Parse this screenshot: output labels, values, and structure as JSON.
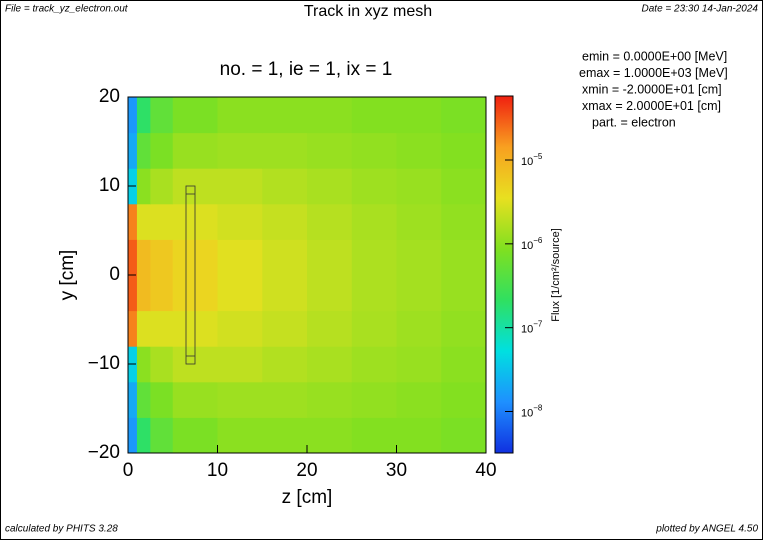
{
  "chart_data": {
    "type": "heatmap",
    "file_label": "File = track_yz_electron.out",
    "title": "Track in xyz mesh",
    "date_label": "Date = 23:30 14-Jan-2024",
    "subtitle": "no. =  1,  ie =  1,  ix =  1",
    "info": [
      "emin  =   0.0000E+00 [MeV]",
      "emax  =   1.0000E+03 [MeV]",
      "xmin  =  -2.0000E+01 [cm]",
      "xmax  =   2.0000E+01 [cm]",
      "part. = electron"
    ],
    "footer_left": "calculated by PHITS 3.28",
    "footer_right": "plotted by ANGEL 4.50",
    "xlabel": "z [cm]",
    "ylabel": "y [cm]",
    "xlim": [
      0,
      40
    ],
    "xticks": [
      0,
      10,
      20,
      30,
      40
    ],
    "ylim": [
      -20,
      20
    ],
    "yticks": [
      {
        "value": -20,
        "label": "−20"
      },
      {
        "value": -10,
        "label": "−10"
      },
      0,
      10,
      20
    ],
    "xbins": [
      0,
      1,
      2.5,
      5,
      10,
      15,
      20,
      25,
      30,
      35,
      40
    ],
    "ybins": [
      -20,
      -16,
      -12,
      -8,
      -4,
      0,
      4,
      8,
      12,
      16,
      20
    ],
    "values": [
      [
        1.5e-08,
        2e-07,
        5e-07,
        8e-07,
        1e-06,
        1e-06,
        1e-06,
        9e-07,
        9e-07,
        8e-07
      ],
      [
        2e-08,
        5e-07,
        8e-07,
        1.2e-06,
        1.3e-06,
        1.3e-06,
        1.2e-06,
        1.1e-06,
        1e-06,
        9e-07
      ],
      [
        4e-08,
        1e-06,
        1.5e-06,
        2e-06,
        2e-06,
        1.7e-06,
        1.5e-06,
        1.3e-06,
        1.2e-06,
        1e-06
      ],
      [
        2e-05,
        3e-06,
        3e-06,
        3e-06,
        2.6e-06,
        2.2e-06,
        1.8e-06,
        1.5e-06,
        1.3e-06,
        1.1e-06
      ],
      [
        3e-05,
        8e-06,
        6e-06,
        4.5e-06,
        3.2e-06,
        2.5e-06,
        2e-06,
        1.6e-06,
        1.4e-06,
        1.2e-06
      ],
      [
        3e-05,
        8e-06,
        6e-06,
        4.5e-06,
        3.2e-06,
        2.5e-06,
        2e-06,
        1.6e-06,
        1.4e-06,
        1.2e-06
      ],
      [
        2e-05,
        3e-06,
        3e-06,
        3e-06,
        2.6e-06,
        2.2e-06,
        1.8e-06,
        1.5e-06,
        1.3e-06,
        1.1e-06
      ],
      [
        4e-08,
        1e-06,
        1.5e-06,
        2e-06,
        2e-06,
        1.7e-06,
        1.5e-06,
        1.3e-06,
        1.2e-06,
        1e-06
      ],
      [
        2e-08,
        5e-07,
        8e-07,
        1.2e-06,
        1.3e-06,
        1.3e-06,
        1.2e-06,
        1.1e-06,
        1e-06,
        9e-07
      ],
      [
        1.5e-08,
        2e-07,
        5e-07,
        8e-07,
        1e-06,
        1e-06,
        1e-06,
        9e-07,
        9e-07,
        8e-07
      ]
    ],
    "colorbar": {
      "scale": "log",
      "clim": [
        3.2e-09,
        5.8e-05
      ],
      "label": "Flux [1/cm²/source]",
      "ticks": [
        {
          "value": 1e-08,
          "label": "10",
          "exponent": "−8"
        },
        {
          "value": 1e-07,
          "label": "10",
          "exponent": "−7"
        },
        {
          "value": 1e-06,
          "label": "10",
          "exponent": "−6"
        },
        {
          "value": 1e-05,
          "label": "10",
          "exponent": "−5"
        }
      ],
      "colors": [
        "#1030e0",
        "#1e90ff",
        "#00e0e0",
        "#30e060",
        "#80e020",
        "#e8e020",
        "#f8a020",
        "#f02010"
      ]
    }
  }
}
